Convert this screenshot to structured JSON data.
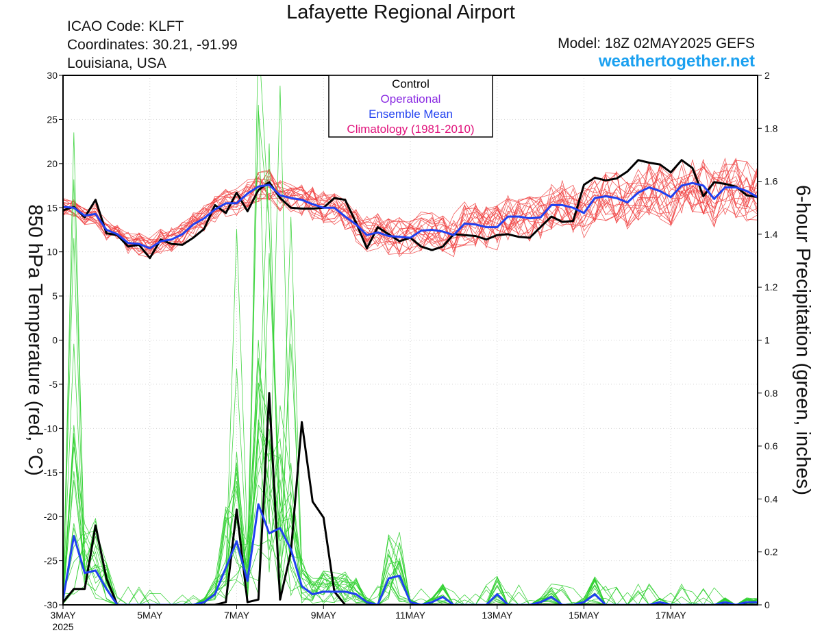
{
  "header": {
    "title": "Lafayette Regional Airport",
    "icao": "ICAO Code: KLFT",
    "coordinates": "Coordinates: 30.21, -91.99",
    "location": "Louisiana, USA",
    "model": "Model: 18Z 02MAY2025 GEFS",
    "site": "weathertogether.net"
  },
  "colors": {
    "control": "#000000",
    "operational": "#8a2be2",
    "ensemble_mean": "#2040f0",
    "climatology": "#e0107a",
    "members_temp": "#f04040",
    "members_precip": "#30d030",
    "site": "#1aa0f0"
  },
  "chart_data": {
    "type": "line",
    "xlabel_year": "2025",
    "x_tick_labels": [
      "3MAY",
      "5MAY",
      "7MAY",
      "9MAY",
      "11MAY",
      "13MAY",
      "15MAY",
      "17MAY"
    ],
    "x_tick_days": [
      0,
      2,
      4,
      6,
      8,
      10,
      12,
      14
    ],
    "x_range_days": [
      0,
      16
    ],
    "left_axis": {
      "label": "850 hPa Temperature (red, °C)",
      "range": [
        -30,
        30
      ],
      "ticks": [
        30,
        25,
        20,
        15,
        10,
        5,
        0,
        -5,
        -10,
        -15,
        -20,
        -25,
        -30
      ]
    },
    "right_axis": {
      "label": "6-hour Precipitation (green, inches)",
      "range": [
        0,
        2
      ],
      "ticks": [
        "2",
        "1.8",
        "1.6",
        "1.4",
        "1.2",
        "1",
        "0.8",
        "0.6",
        "0.4",
        "0.2",
        "0"
      ]
    },
    "legend": {
      "position": "top-center",
      "items": [
        "Control",
        "Operational",
        "Ensemble Mean",
        "Climatology (1981-2010)"
      ]
    },
    "series": [
      {
        "name": "Control",
        "axis": "temperature",
        "x": [
          0,
          0.25,
          0.5,
          0.75,
          1,
          1.25,
          1.5,
          1.75,
          2,
          2.25,
          2.5,
          2.75,
          3,
          3.25,
          3.5,
          3.75,
          4,
          4.25,
          4.5,
          4.75,
          5,
          5.25,
          5.5,
          5.75,
          6,
          6.25,
          6.5,
          6.75,
          7,
          7.25,
          7.5,
          7.75,
          8,
          8.25,
          8.5,
          8.75,
          9,
          9.25,
          9.5,
          9.75,
          10,
          10.25,
          10.5,
          10.75,
          11,
          11.25,
          11.5,
          11.75,
          12,
          12.25,
          12.5,
          12.75,
          13,
          13.25,
          13.5,
          13.75,
          14,
          14.25,
          14.5,
          14.75,
          15,
          15.25,
          15.5,
          15.75,
          16
        ],
        "values": [
          14.7,
          15.1,
          13.9,
          15.9,
          12.1,
          11.9,
          10.6,
          10.8,
          9.3,
          11.4,
          10.9,
          10.8,
          11.6,
          12.6,
          15.3,
          14.4,
          16.7,
          14.6,
          17.0,
          17.9,
          16.1,
          15.0,
          14.9,
          14.9,
          15.0,
          16.1,
          15.9,
          13.3,
          10.4,
          12.8,
          12.0,
          11.2,
          11.6,
          10.6,
          10.2,
          10.6,
          12.0,
          11.9,
          11.8,
          11.4,
          11.9,
          12.0,
          11.7,
          11.6,
          12.8,
          14.0,
          13.4,
          13.5,
          17.6,
          18.4,
          18.1,
          18.3,
          19.1,
          20.4,
          20.1,
          19.9,
          19.0,
          20.4,
          19.5,
          16.3,
          17.9,
          17.7,
          17.4,
          16.4,
          16.2
        ]
      },
      {
        "name": "Ensemble Mean",
        "axis": "temperature",
        "x": [
          0,
          0.25,
          0.5,
          0.75,
          1,
          1.25,
          1.5,
          1.75,
          2,
          2.25,
          2.5,
          2.75,
          3,
          3.25,
          3.5,
          3.75,
          4,
          4.25,
          4.5,
          4.75,
          5,
          5.25,
          5.5,
          5.75,
          6,
          6.25,
          6.5,
          6.75,
          7,
          7.25,
          7.5,
          7.75,
          8,
          8.25,
          8.5,
          8.75,
          9,
          9.25,
          9.5,
          9.75,
          10,
          10.25,
          10.5,
          10.75,
          11,
          11.25,
          11.5,
          11.75,
          12,
          12.25,
          12.5,
          12.75,
          13,
          13.25,
          13.5,
          13.75,
          14,
          14.25,
          14.5,
          14.75,
          15,
          15.25,
          15.5,
          15.75,
          16
        ],
        "values": [
          15.1,
          15.0,
          14.1,
          14.3,
          12.5,
          12.0,
          11.0,
          10.9,
          10.4,
          11.2,
          11.4,
          12.0,
          13.1,
          13.8,
          14.8,
          15.5,
          15.5,
          16.6,
          17.4,
          17.6,
          16.4,
          16.1,
          15.9,
          15.4,
          15.0,
          15.0,
          14.0,
          13.1,
          11.9,
          12.2,
          11.8,
          11.7,
          11.6,
          12.4,
          12.5,
          12.3,
          11.9,
          13.2,
          13.1,
          12.8,
          12.8,
          14.0,
          14.0,
          13.8,
          13.9,
          15.3,
          15.3,
          15.0,
          14.4,
          16.1,
          16.3,
          16.1,
          15.6,
          16.7,
          17.3,
          16.9,
          16.2,
          17.5,
          17.8,
          17.5,
          16.0,
          17.3,
          17.3,
          16.9,
          16.2
        ]
      },
      {
        "name": "Control",
        "axis": "precipitation",
        "x": [
          0,
          0.25,
          0.5,
          0.75,
          1,
          1.25,
          1.5,
          1.75,
          2,
          2.25,
          2.5,
          2.75,
          3,
          3.25,
          3.5,
          3.75,
          4,
          4.25,
          4.5,
          4.75,
          5,
          5.25,
          5.5,
          5.75,
          6,
          6.25,
          6.5,
          6.75,
          7,
          7.25,
          7.5,
          7.75,
          8,
          8.25,
          8.5,
          8.75,
          9,
          9.25,
          9.5,
          9.75,
          10,
          10.25,
          10.5,
          10.75,
          11,
          11.25,
          11.5,
          11.75,
          12,
          12.25,
          12.5,
          12.75,
          13,
          13.25,
          13.5,
          13.75,
          14,
          14.25,
          14.5,
          14.75,
          15,
          15.25,
          15.5,
          15.75,
          16
        ],
        "values": [
          0.01,
          0.06,
          0.06,
          0.3,
          0.1,
          0.0,
          0.0,
          0.0,
          0.0,
          0.0,
          0.0,
          0.0,
          0.0,
          0.0,
          0.0,
          0.01,
          0.36,
          0.01,
          0.02,
          0.8,
          0.02,
          0.2,
          0.69,
          0.39,
          0.33,
          0.05,
          0.0,
          0.0,
          0.0,
          0.0,
          0.0,
          0.0,
          0.0,
          0.0,
          0.0,
          0.0,
          0.0,
          0.0,
          0.0,
          0.0,
          0.0,
          0.0,
          0.0,
          0.0,
          0.0,
          0.0,
          0.0,
          0.0,
          0.0,
          0.0,
          0.0,
          0.0,
          0.0,
          0.0,
          0.0,
          0.0,
          0.0,
          0.0,
          0.0,
          0.0,
          0.0,
          0.0,
          0.0,
          0.0,
          0.0
        ]
      },
      {
        "name": "Ensemble Mean",
        "axis": "precipitation",
        "x": [
          0,
          0.25,
          0.5,
          0.75,
          1,
          1.25,
          1.5,
          1.75,
          2,
          2.25,
          2.5,
          2.75,
          3,
          3.25,
          3.5,
          3.75,
          4,
          4.25,
          4.5,
          4.75,
          5,
          5.25,
          5.5,
          5.75,
          6,
          6.25,
          6.5,
          6.75,
          7,
          7.25,
          7.5,
          7.75,
          8,
          8.25,
          8.5,
          8.75,
          9,
          9.25,
          9.5,
          9.75,
          10,
          10.25,
          10.5,
          10.75,
          11,
          11.25,
          11.5,
          11.75,
          12,
          12.25,
          12.5,
          12.75,
          13,
          13.25,
          13.5,
          13.75,
          14,
          14.25,
          14.5,
          14.75,
          15,
          15.25,
          15.5,
          15.75,
          16
        ],
        "values": [
          0.02,
          0.26,
          0.12,
          0.13,
          0.06,
          0.0,
          0.0,
          0.0,
          0.0,
          0.0,
          0.0,
          0.0,
          0.0,
          0.01,
          0.04,
          0.14,
          0.24,
          0.09,
          0.38,
          0.27,
          0.29,
          0.21,
          0.07,
          0.04,
          0.05,
          0.05,
          0.05,
          0.04,
          0.01,
          0.0,
          0.1,
          0.11,
          0.01,
          0.0,
          0.01,
          0.03,
          0.0,
          0.0,
          0.0,
          0.0,
          0.04,
          0.0,
          0.0,
          0.0,
          0.01,
          0.03,
          0.0,
          0.0,
          0.01,
          0.04,
          0.0,
          0.0,
          0.0,
          0.0,
          0.0,
          0.01,
          0.0,
          0.0,
          0.0,
          0.0,
          0.0,
          0.01,
          0.0,
          0.01,
          0.01
        ]
      }
    ]
  }
}
